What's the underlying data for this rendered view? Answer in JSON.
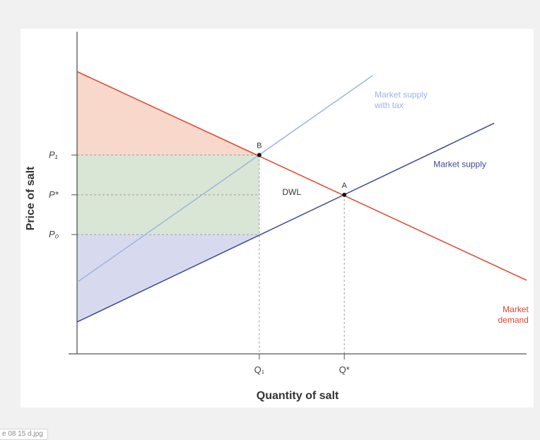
{
  "file_tab": "e 08 15 d.jpg",
  "colors": {
    "background": "#f1f1f1",
    "frame": "#ffffff",
    "axis": "#555555",
    "demand": "#e0442e",
    "supply": "#3d4a98",
    "supply_tax": "#9fb3de",
    "consumer_surplus": "#f7d8cb",
    "tax_revenue": "#d9e6d6",
    "producer_surplus": "#d7daef",
    "guide": "#9a9a9a",
    "label": "#444444",
    "point": "#111111"
  },
  "chart_data": {
    "type": "line",
    "title": "",
    "xlabel": "Quantity of salt",
    "ylabel": "Price of salt",
    "xlim": [
      0,
      11.1
    ],
    "ylim": [
      0,
      8.1
    ],
    "grid": false,
    "series": [
      {
        "name": "Market demand",
        "color": "#e0442e",
        "points": [
          [
            0,
            7.1
          ],
          [
            11.1,
            1.85
          ]
        ]
      },
      {
        "name": "Market supply",
        "color": "#3d4a98",
        "points": [
          [
            0,
            0.8
          ],
          [
            10.3,
            5.8
          ]
        ]
      },
      {
        "name": "Market supply\nwith tax",
        "color": "#9fb3de",
        "points": [
          [
            0,
            1.8
          ],
          [
            7.3,
            7.0
          ]
        ]
      }
    ],
    "x_ticks": [
      {
        "value": 4.5,
        "label": "Q₁"
      },
      {
        "value": 6.6,
        "label": "Q*"
      }
    ],
    "y_ticks": [
      {
        "value": 5.0,
        "label": "P₁"
      },
      {
        "value": 4.0,
        "label": "P*"
      },
      {
        "value": 3.0,
        "label": "P₀"
      }
    ],
    "points": [
      {
        "label": "B",
        "x": 4.5,
        "y": 5.0
      },
      {
        "label": "A",
        "x": 6.6,
        "y": 4.0
      }
    ],
    "regions": [
      {
        "name": "consumer surplus",
        "color": "#f7d8cb",
        "polygon": [
          [
            0,
            7.1
          ],
          [
            4.5,
            5.0
          ],
          [
            0,
            5.0
          ]
        ]
      },
      {
        "name": "tax revenue",
        "color": "#d9e6d6",
        "polygon": [
          [
            0,
            5.0
          ],
          [
            4.5,
            5.0
          ],
          [
            4.5,
            3.0
          ],
          [
            0,
            3.0
          ]
        ]
      },
      {
        "name": "producer surplus",
        "color": "#d7daef",
        "polygon": [
          [
            0,
            3.0
          ],
          [
            4.5,
            3.0
          ],
          [
            0,
            0.8
          ]
        ]
      }
    ],
    "annotations": [
      {
        "text": "DWL",
        "x": 5.3,
        "y": 4.0
      }
    ],
    "series_labels": [
      {
        "text": "Market supply\nwith tax",
        "color": "#9fb3de",
        "x": 7.35,
        "y": 6.45
      },
      {
        "text": "Market supply",
        "color": "#3d4a98",
        "x": 8.8,
        "y": 4.7
      },
      {
        "text": "Market\ndemand",
        "color": "#e0442e",
        "x": 11.15,
        "y": 1.05
      }
    ]
  }
}
